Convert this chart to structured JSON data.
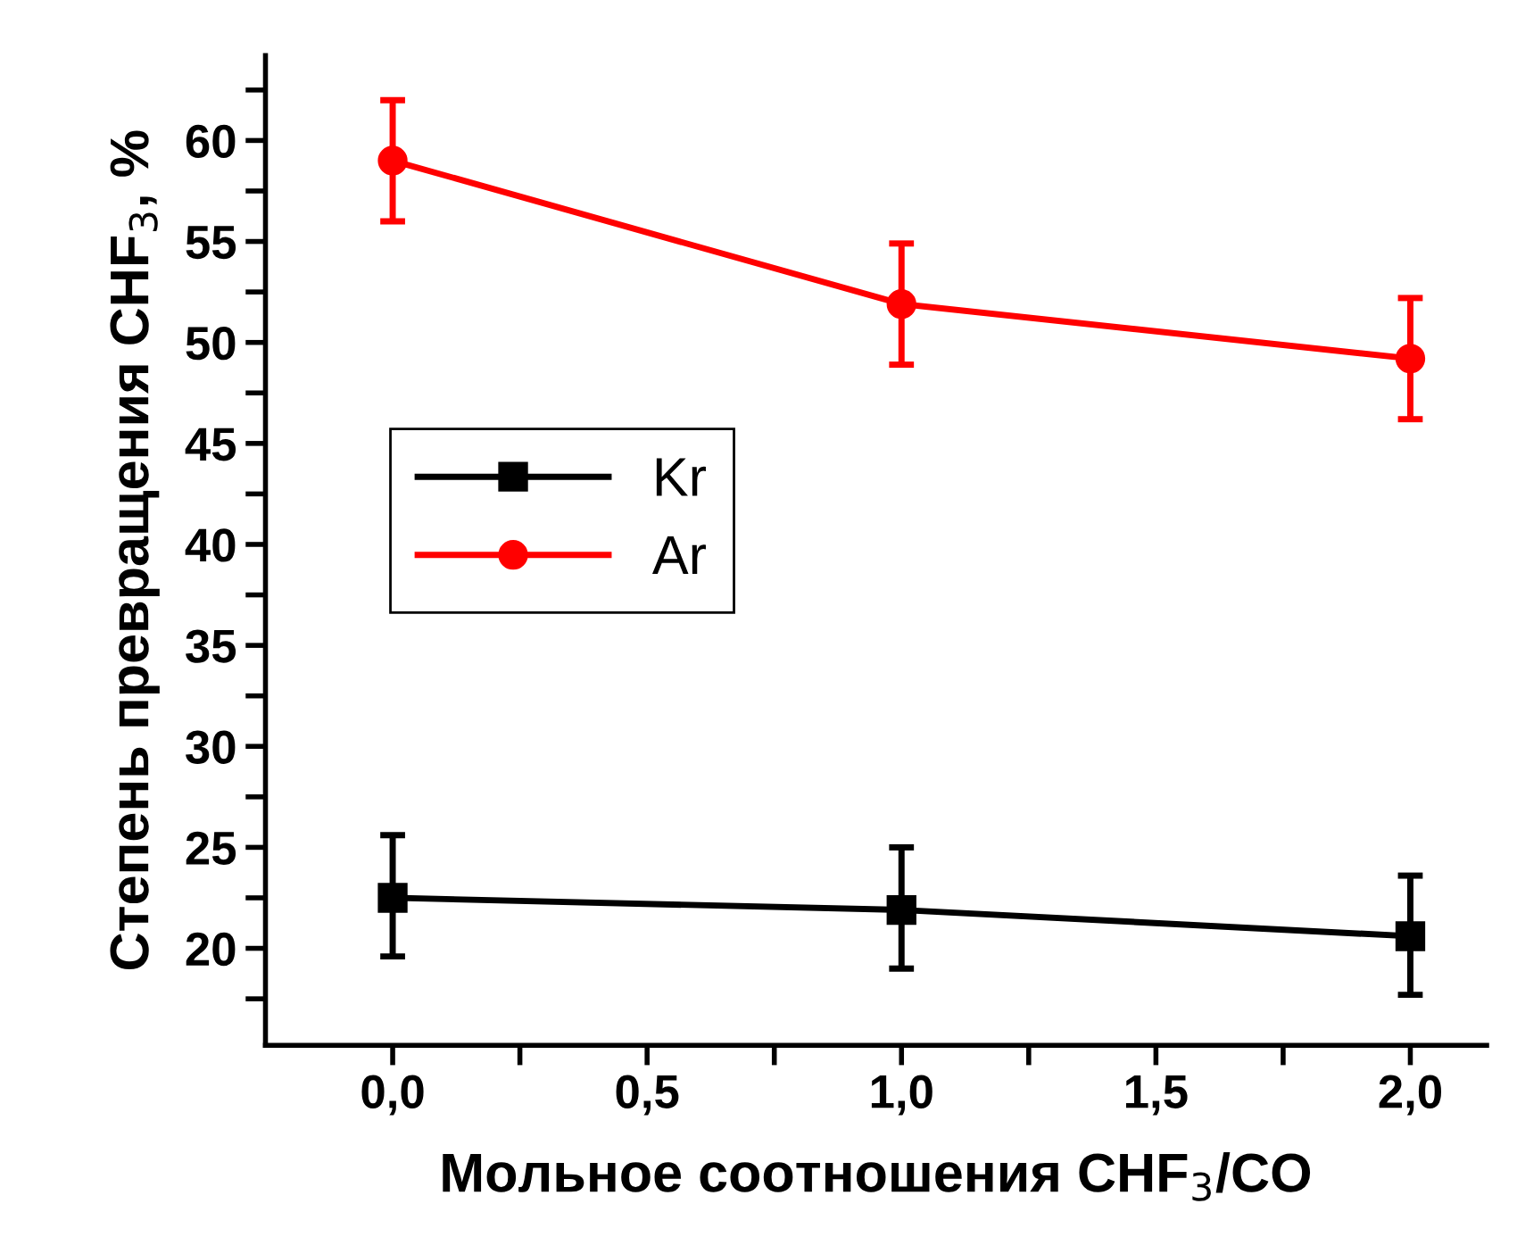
{
  "chart_data": {
    "type": "line",
    "xlabel": "Мольное соотношения CHF$_{3}$/CO",
    "ylabel": "Степень превращения CHF$_{3}$, %",
    "x": [
      0,
      1,
      2
    ],
    "series": [
      {
        "name": "Kr",
        "color": "#000000",
        "marker": "square",
        "values": [
          22.5,
          21.9,
          20.6
        ],
        "errors": [
          [
            19.6,
            25.6
          ],
          [
            19.0,
            25.0
          ],
          [
            17.7,
            23.6
          ]
        ]
      },
      {
        "name": "Ar",
        "color": "#ff0000",
        "marker": "circle",
        "values": [
          59.0,
          51.9,
          49.2
        ],
        "errors": [
          [
            56.0,
            62.0
          ],
          [
            48.9,
            54.9
          ],
          [
            46.2,
            52.2
          ]
        ]
      }
    ],
    "xlim": [
      -0.25,
      2.15
    ],
    "ylim": [
      15.2,
      64.2
    ],
    "xticks": [
      {
        "value": 0,
        "label": "0,0"
      },
      {
        "value": 0.25,
        "label": null
      },
      {
        "value": 0.5,
        "label": "0,5"
      },
      {
        "value": 0.75,
        "label": null
      },
      {
        "value": 1,
        "label": "1,0"
      },
      {
        "value": 1.25,
        "label": null
      },
      {
        "value": 1.5,
        "label": "1,5"
      },
      {
        "value": 1.75,
        "label": null
      },
      {
        "value": 2,
        "label": "2,0"
      }
    ],
    "yticks": [
      {
        "value": 17.5,
        "label": null
      },
      20,
      {
        "value": 22.5,
        "label": null
      },
      25,
      {
        "value": 27.5,
        "label": null
      },
      30,
      {
        "value": 32.5,
        "label": null
      },
      35,
      {
        "value": 37.5,
        "label": null
      },
      40,
      {
        "value": 42.5,
        "label": null
      },
      45,
      {
        "value": 47.5,
        "label": null
      },
      50,
      {
        "value": 52.5,
        "label": null
      },
      55,
      {
        "value": 57.5,
        "label": null
      },
      60,
      {
        "value": 62.5,
        "label": null
      }
    ],
    "legend": "center left",
    "grid": false,
    "line_style": "solid"
  }
}
